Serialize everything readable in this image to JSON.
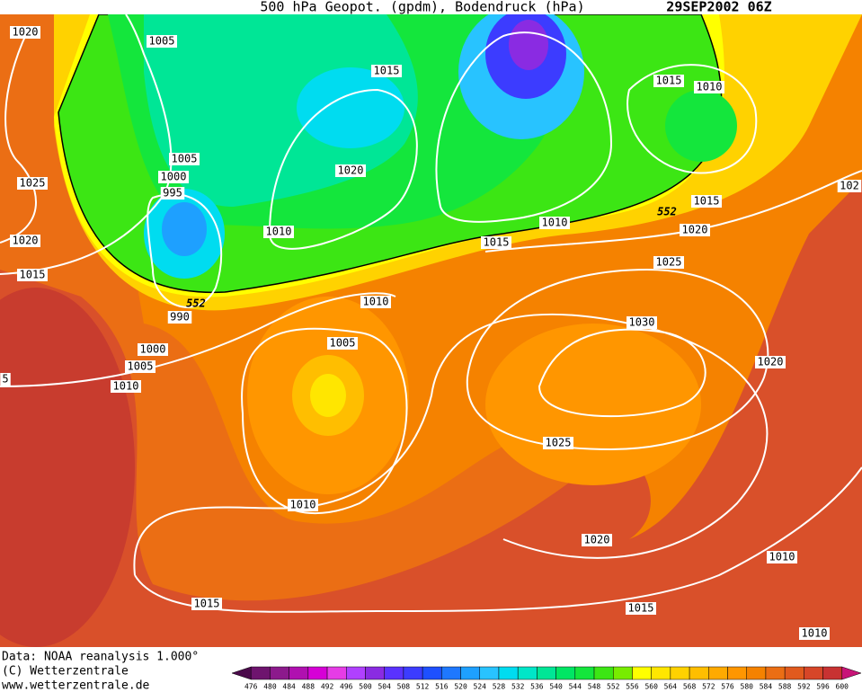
{
  "header": {
    "title": "500 hPa Geopot. (gpdm), Bodendruck (hPa)",
    "date": "29SEP2002 06Z"
  },
  "isobar_labels": [
    "1020",
    "1005",
    "1015",
    "1015",
    "1010",
    "1005",
    "1000",
    "995",
    "1025",
    "1020",
    "1010",
    "1010",
    "552",
    "1015",
    "1020",
    "1020",
    "1015",
    "1015",
    "1025",
    "552",
    "990",
    "1010",
    "1030",
    "1005",
    "1000",
    "1005",
    "1020",
    "1010",
    "5",
    "1025",
    "1010",
    "1020",
    "1010",
    "1015",
    "1015",
    "1010",
    "102"
  ],
  "footer": {
    "source": "Data: NOAA reanalysis 1.000°",
    "copyright": "(C) Wetterzentrale",
    "url": "www.wetterzentrale.de"
  },
  "colorbar": {
    "labels": [
      "476",
      "480",
      "484",
      "488",
      "492",
      "496",
      "500",
      "504",
      "508",
      "512",
      "516",
      "520",
      "524",
      "528",
      "532",
      "536",
      "540",
      "544",
      "548",
      "552",
      "556",
      "560",
      "564",
      "568",
      "572",
      "576",
      "580",
      "584",
      "588",
      "592",
      "596",
      "600"
    ],
    "colors": [
      "#4b0a4b",
      "#6e146e",
      "#8c1a8c",
      "#b010b0",
      "#d600d6",
      "#e63ce6",
      "#b040ff",
      "#8a2be2",
      "#5a32ff",
      "#3c3cff",
      "#1e50ff",
      "#1e78ff",
      "#1ea0ff",
      "#28c3ff",
      "#00dcf0",
      "#00e6c8",
      "#00e696",
      "#00e664",
      "#14e63c",
      "#3ce614",
      "#78ec00",
      "#ffff00",
      "#ffe600",
      "#ffd200",
      "#ffbe00",
      "#ffaa00",
      "#ff9600",
      "#f58200",
      "#eb6e14",
      "#e15a1e",
      "#d74628",
      "#c83232",
      "#c81478"
    ]
  }
}
